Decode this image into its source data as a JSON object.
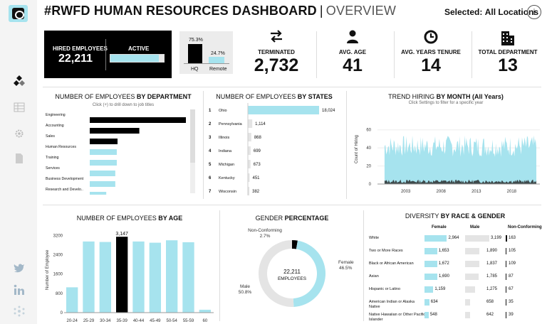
{
  "header": {
    "title": "#RWFD HUMAN RESOURCES DASHBOARD",
    "separator": "|",
    "subtitle": "OVERVIEW",
    "selected_label": "Selected:",
    "selected_value": "All Locations",
    "info": "i"
  },
  "hired": {
    "label": "HIRED EMPLOYEES",
    "value": "22,211",
    "active_label": "ACTIVE",
    "active_fraction": 0.91
  },
  "location": {
    "hq_pct": "75.3%",
    "remote_pct": "24.7%",
    "hq_label": "HQ",
    "remote_label": "Remote",
    "hq_value": 75.3,
    "remote_value": 24.7
  },
  "kpis": [
    {
      "label": "TERMINATED",
      "value": "2,732",
      "icon": "exchange-arrows-icon"
    },
    {
      "label": "AVG. AGE",
      "value": "41",
      "icon": "person-icon"
    },
    {
      "label": "AVG. YEARS TENURE",
      "value": "14",
      "icon": "clock-icon"
    },
    {
      "label": "TOTAL DEPARTMENT",
      "value": "13",
      "icon": "building-icon"
    }
  ],
  "department": {
    "title_plain": "NUMBER OF EMPLOYEES ",
    "title_bold": "BY DEPARTMENT",
    "subtitle": "Click (+) to drill down to job titles"
  },
  "states": {
    "title_plain": "NUMBER OF EMPLOYEES ",
    "title_bold": "BY STATES"
  },
  "trend": {
    "title_plain": "TREND HIRING ",
    "title_bold": "BY MONTH (All Years)",
    "subtitle": "Click Settings to filter for a specific year",
    "ylabel": "Count of Hiring"
  },
  "age": {
    "title_plain": "NUMBER OF EMPLOYEES ",
    "title_bold": "BY AGE",
    "ylabel": "Number of Employee"
  },
  "gender": {
    "title_plain": "GENDER ",
    "title_bold": "PERCENTAGE",
    "center_value": "22,211",
    "center_label": "EMPLOYEES",
    "labels": [
      {
        "name": "Female",
        "pct": "46.5%"
      },
      {
        "name": "Male",
        "pct": "50.8%"
      },
      {
        "name": "Non-Conforming",
        "pct": "2.7%"
      }
    ]
  },
  "diversity": {
    "title_plain": "DIVERSITY ",
    "title_bold": "BY RACE & GENDER",
    "columns": [
      "Female",
      "Male",
      "Non-Conforming"
    ],
    "rows": [
      {
        "race": "White",
        "female": "2,964",
        "male": "3,199",
        "nc": "163",
        "fv": 2964,
        "mv": 3199,
        "nv": 163
      },
      {
        "race": "Two or More Races",
        "female": "1,653",
        "male": "1,890",
        "nc": "105",
        "fv": 1653,
        "mv": 1890,
        "nv": 105
      },
      {
        "race": "Black or African American",
        "female": "1,672",
        "male": "1,837",
        "nc": "109",
        "fv": 1672,
        "mv": 1837,
        "nv": 109
      },
      {
        "race": "Asian",
        "female": "1,690",
        "male": "1,785",
        "nc": "87",
        "fv": 1690,
        "mv": 1785,
        "nv": 87
      },
      {
        "race": "Hispanic or Latino",
        "female": "1,159",
        "male": "1,275",
        "nc": "67",
        "fv": 1159,
        "mv": 1275,
        "nv": 67
      },
      {
        "race": "American Indian or Alaska Native",
        "female": "634",
        "male": "658",
        "nc": "35",
        "fv": 634,
        "mv": 658,
        "nv": 35
      },
      {
        "race": "Native Hawaiian or Other Pacific Islander",
        "female": "548",
        "male": "642",
        "nc": "39",
        "fv": 548,
        "mv": 642,
        "nv": 39
      }
    ]
  },
  "colors": {
    "accent": "#a6e3ee",
    "dark": "#000000",
    "grey": "#e4e4e4",
    "trend_dark": "#3e4a4c"
  },
  "chart_data": [
    {
      "type": "bar",
      "orientation": "horizontal",
      "categories": [
        "Engineering",
        "Accounting",
        "Sales",
        "Human Resources",
        "Training",
        "Services",
        "Business Development",
        "Research and Develo.."
      ],
      "values": [
        6400,
        3300,
        1850,
        1800,
        1800,
        1700,
        1700,
        1100
      ],
      "highlight": [
        true,
        true,
        true,
        false,
        false,
        false,
        false,
        false
      ]
    },
    {
      "type": "bar",
      "orientation": "horizontal",
      "ranks": [
        "1",
        "2",
        "3",
        "4",
        "5",
        "6",
        "7"
      ],
      "categories": [
        "Ohio",
        "Pennsylvania",
        "Illinois",
        "Indiana",
        "Michigan",
        "Kentucky",
        "Wisconsin"
      ],
      "values": [
        18024,
        1114,
        868,
        699,
        673,
        451,
        382
      ],
      "labels": [
        "18,024",
        "1,114",
        "868",
        "699",
        "673",
        "451",
        "382"
      ]
    },
    {
      "type": "area",
      "x_ticks": [
        "2003",
        "2008",
        "2013",
        "2018"
      ],
      "y_ticks": [
        "60",
        "40",
        "20",
        "0"
      ],
      "ylim": [
        0,
        70
      ],
      "xlim": [
        1999,
        2022
      ],
      "series": [
        {
          "start": 2000,
          "end": 2021.5,
          "level": 42,
          "variation": 12
        },
        {
          "start": 2000,
          "end": 2021.5,
          "level": 3,
          "variation": 2
        }
      ]
    },
    {
      "type": "bar",
      "categories": [
        "20-24",
        "25-29",
        "30-34",
        "35-39",
        "40-44",
        "45-49",
        "50-54",
        "55-59",
        "60"
      ],
      "values": [
        1050,
        2950,
        2930,
        3147,
        2950,
        2900,
        3000,
        2920,
        120
      ],
      "highlight_label": "3,147",
      "highlight_index": 3,
      "y_ticks": [
        "3200",
        "2400",
        "1600",
        "800",
        "0"
      ],
      "ylim": [
        0,
        3300
      ]
    },
    {
      "type": "pie",
      "categories": [
        "Female",
        "Male",
        "Non-Conforming"
      ],
      "values": [
        46.5,
        50.8,
        2.7
      ]
    }
  ]
}
